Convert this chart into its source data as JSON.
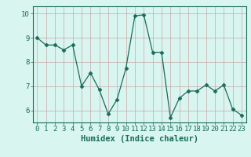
{
  "x": [
    0,
    1,
    2,
    3,
    4,
    5,
    6,
    7,
    8,
    9,
    10,
    11,
    12,
    13,
    14,
    15,
    16,
    17,
    18,
    19,
    20,
    21,
    22,
    23
  ],
  "y": [
    9.0,
    8.7,
    8.7,
    8.5,
    8.7,
    7.0,
    7.55,
    6.85,
    5.85,
    6.45,
    7.75,
    9.9,
    9.95,
    8.4,
    8.4,
    5.7,
    6.5,
    6.8,
    6.8,
    7.05,
    6.8,
    7.05,
    6.05,
    5.8
  ],
  "line_color": "#1a6b5a",
  "marker": "D",
  "marker_size": 2.5,
  "bg_color": "#d8f5f0",
  "grid_color_major": "#c8a8a8",
  "grid_color_minor": "#c8a8a8",
  "xlabel": "Humidex (Indice chaleur)",
  "ylim": [
    5.5,
    10.3
  ],
  "xlim": [
    -0.5,
    23.5
  ],
  "yticks": [
    6,
    7,
    8,
    9,
    10
  ],
  "xticks": [
    0,
    1,
    2,
    3,
    4,
    5,
    6,
    7,
    8,
    9,
    10,
    11,
    12,
    13,
    14,
    15,
    16,
    17,
    18,
    19,
    20,
    21,
    22,
    23
  ],
  "tick_color": "#1a6b5a",
  "label_color": "#1a6b5a",
  "xlabel_fontsize": 7.5,
  "tick_fontsize": 6.5
}
